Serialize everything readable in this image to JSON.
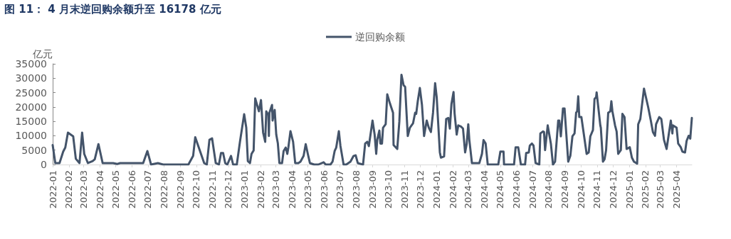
{
  "chart_data": {
    "type": "line",
    "title": "图 11： 4 月末逆回购余额升至 16178 亿元",
    "ylabel": "亿元",
    "legend": "top",
    "marker": "none",
    "line_style": "solid",
    "xlim": [
      "2022-01-01",
      "2025-04-30"
    ],
    "xticks": [
      "2022-01",
      "2022-02",
      "2022-03",
      "2022-04",
      "2022-05",
      "2022-06",
      "2022-07",
      "2022-08",
      "2022-09",
      "2022-10",
      "2022-11",
      "2022-12",
      "2023-01",
      "2023-02",
      "2023-03",
      "2023-04",
      "2023-05",
      "2023-06",
      "2023-07",
      "2023-08",
      "2023-09",
      "2023-10",
      "2023-11",
      "2023-12",
      "2024-01",
      "2024-02",
      "2024-03",
      "2024-04",
      "2024-05",
      "2024-06",
      "2024-07",
      "2024-08",
      "2024-09",
      "2024-10",
      "2024-11",
      "2024-12",
      "2025-01",
      "2025-02",
      "2025-03",
      "2025-04"
    ],
    "ylim": [
      0,
      35000
    ],
    "yticks": [
      0,
      5000,
      10000,
      15000,
      20000,
      25000,
      30000,
      35000
    ],
    "series": [
      {
        "name": "逆回购余额",
        "color": "#44546a",
        "x": [
          "2022-01-01",
          "2022-01-06",
          "2022-01-14",
          "2022-01-21",
          "2022-01-25",
          "2022-01-30",
          "2022-02-09",
          "2022-02-14",
          "2022-02-21",
          "2022-02-26",
          "2022-03-02",
          "2022-03-09",
          "2022-03-18",
          "2022-03-22",
          "2022-03-29",
          "2022-04-06",
          "2022-04-26",
          "2022-05-04",
          "2022-05-09",
          "2022-06-22",
          "2022-06-30",
          "2022-07-07",
          "2022-07-20",
          "2022-07-30",
          "2022-09-16",
          "2022-09-25",
          "2022-09-29",
          "2022-10-09",
          "2022-10-16",
          "2022-10-21",
          "2022-10-26",
          "2022-10-31",
          "2022-11-07",
          "2022-11-13",
          "2022-11-17",
          "2022-11-21",
          "2022-11-25",
          "2022-11-29",
          "2022-12-06",
          "2022-12-10",
          "2022-12-17",
          "2022-12-23",
          "2022-12-31",
          "2023-01-04",
          "2023-01-07",
          "2023-01-11",
          "2023-01-14",
          "2023-01-18",
          "2023-01-21",
          "2023-01-28",
          "2023-02-01",
          "2023-02-05",
          "2023-02-09",
          "2023-02-11",
          "2023-02-15",
          "2023-02-16",
          "2023-02-17",
          "2023-02-22",
          "2023-02-23",
          "2023-02-27",
          "2023-03-02",
          "2023-03-05",
          "2023-03-08",
          "2023-03-13",
          "2023-03-16",
          "2023-03-20",
          "2023-03-23",
          "2023-03-25",
          "2023-03-29",
          "2023-04-03",
          "2023-04-07",
          "2023-04-13",
          "2023-04-17",
          "2023-04-23",
          "2023-04-27",
          "2023-05-01",
          "2023-05-05",
          "2023-05-13",
          "2023-05-21",
          "2023-05-31",
          "2023-06-04",
          "2023-06-13",
          "2023-06-17",
          "2023-06-21",
          "2023-06-24",
          "2023-06-29",
          "2023-07-02",
          "2023-07-08",
          "2023-07-13",
          "2023-07-17",
          "2023-07-21",
          "2023-07-27",
          "2023-07-31",
          "2023-08-04",
          "2023-08-14",
          "2023-08-18",
          "2023-08-22",
          "2023-08-25",
          "2023-09-01",
          "2023-09-05",
          "2023-09-08",
          "2023-09-10",
          "2023-09-14",
          "2023-09-16",
          "2023-09-19",
          "2023-09-21",
          "2023-09-26",
          "2023-09-29",
          "2023-10-04",
          "2023-10-10",
          "2023-10-11",
          "2023-10-18",
          "2023-10-22",
          "2023-10-26",
          "2023-10-30",
          "2023-11-02",
          "2023-11-07",
          "2023-11-11",
          "2023-11-17",
          "2023-11-21",
          "2023-11-23",
          "2023-11-26",
          "2023-11-30",
          "2023-12-04",
          "2023-12-08",
          "2023-12-13",
          "2023-12-17",
          "2023-12-21",
          "2023-12-25",
          "2023-12-29",
          "2024-01-01",
          "2024-01-07",
          "2024-01-09",
          "2024-01-15",
          "2024-01-19",
          "2024-01-23",
          "2024-01-26",
          "2024-01-29",
          "2024-02-02",
          "2024-02-04",
          "2024-02-08",
          "2024-02-11",
          "2024-02-16",
          "2024-02-20",
          "2024-02-24",
          "2024-02-27",
          "2024-03-01",
          "2024-03-03",
          "2024-03-08",
          "2024-03-22",
          "2024-03-27",
          "2024-03-30",
          "2024-04-03",
          "2024-04-07",
          "2024-04-27",
          "2024-05-01",
          "2024-05-07",
          "2024-05-08",
          "2024-05-27",
          "2024-05-30",
          "2024-06-04",
          "2024-06-09",
          "2024-06-17",
          "2024-06-19",
          "2024-06-24",
          "2024-06-26",
          "2024-06-30",
          "2024-07-03",
          "2024-07-07",
          "2024-07-14",
          "2024-07-16",
          "2024-07-21",
          "2024-07-23",
          "2024-07-25",
          "2024-07-30",
          "2024-08-05",
          "2024-08-09",
          "2024-08-13",
          "2024-08-19",
          "2024-08-21",
          "2024-08-24",
          "2024-08-28",
          "2024-08-31",
          "2024-09-07",
          "2024-09-11",
          "2024-09-15",
          "2024-09-19",
          "2024-09-22",
          "2024-09-24",
          "2024-09-26",
          "2024-09-28",
          "2024-10-02",
          "2024-10-12",
          "2024-10-16",
          "2024-10-19",
          "2024-10-24",
          "2024-10-27",
          "2024-10-30",
          "2024-10-31",
          "2024-11-07",
          "2024-11-08",
          "2024-11-12",
          "2024-11-15",
          "2024-11-18",
          "2024-11-22",
          "2024-11-26",
          "2024-11-28",
          "2024-11-30",
          "2024-12-05",
          "2024-12-08",
          "2024-12-11",
          "2024-12-16",
          "2024-12-19",
          "2024-12-23",
          "2024-12-27",
          "2025-01-02",
          "2025-01-06",
          "2025-01-10",
          "2025-01-16",
          "2025-01-18",
          "2025-01-22",
          "2025-01-29",
          "2025-02-06",
          "2025-02-11",
          "2025-02-15",
          "2025-02-19",
          "2025-02-21",
          "2025-02-27",
          "2025-03-03",
          "2025-03-08",
          "2025-03-13",
          "2025-03-21",
          "2025-03-24",
          "2025-03-25",
          "2025-04-01",
          "2025-04-04",
          "2025-04-09",
          "2025-04-12",
          "2025-04-17",
          "2025-04-20",
          "2025-04-24",
          "2025-04-27",
          "2025-04-30"
        ],
        "values": [
          6800,
          500,
          500,
          4500,
          5900,
          11100,
          9800,
          2000,
          500,
          11100,
          3700,
          500,
          1200,
          1800,
          7100,
          500,
          500,
          200,
          500,
          500,
          4700,
          0,
          500,
          0,
          0,
          3000,
          9500,
          4200,
          500,
          0,
          8600,
          9100,
          500,
          0,
          4000,
          4000,
          500,
          0,
          3000,
          0,
          0,
          7900,
          17500,
          12800,
          1200,
          500,
          3700,
          4900,
          23000,
          18500,
          22400,
          11100,
          7900,
          18500,
          17200,
          9900,
          18000,
          20700,
          15300,
          19000,
          10400,
          7400,
          500,
          500,
          4700,
          5900,
          3700,
          5900,
          11600,
          7900,
          500,
          500,
          1000,
          3000,
          7100,
          3700,
          500,
          0,
          0,
          800,
          0,
          0,
          1000,
          4700,
          5900,
          11600,
          6500,
          0,
          0,
          500,
          1000,
          3000,
          3200,
          500,
          0,
          7300,
          7900,
          6400,
          15300,
          10400,
          3700,
          8600,
          11800,
          7300,
          7300,
          12800,
          14000,
          24400,
          21300,
          18000,
          6800,
          5400,
          15000,
          31200,
          27600,
          27000,
          9900,
          12800,
          14300,
          18000,
          17600,
          22000,
          26600,
          20700,
          9900,
          15300,
          12800,
          11300,
          18000,
          28300,
          23400,
          4200,
          2400,
          2800,
          15800,
          16200,
          12500,
          21000,
          25200,
          17800,
          10400,
          13600,
          13200,
          12500,
          4200,
          7200,
          14000,
          8600,
          500,
          500,
          3700,
          8500,
          7300,
          0,
          0,
          4500,
          4500,
          0,
          0,
          6000,
          6000,
          0,
          0,
          4000,
          4200,
          6600,
          7300,
          6600,
          500,
          0,
          10800,
          11500,
          11300,
          5000,
          13600,
          7300,
          0,
          1000,
          15300,
          15300,
          9800,
          19500,
          19500,
          1000,
          3000,
          9800,
          10800,
          18000,
          18500,
          23700,
          16500,
          16500,
          3700,
          4200,
          9800,
          12000,
          22800,
          23400,
          25100,
          13600,
          12800,
          1000,
          1800,
          5000,
          18000,
          18500,
          22000,
          18500,
          13600,
          11500,
          3700,
          5000,
          17600,
          16500,
          5400,
          6000,
          2400,
          1000,
          300,
          14000,
          15800,
          26400,
          19900,
          15300,
          11300,
          10000,
          14000,
          16500,
          15800,
          8600,
          5400,
          15300,
          10800,
          13600,
          12800,
          7300,
          6000,
          4500,
          4200,
          8200,
          10000,
          9000,
          16178
        ]
      }
    ]
  }
}
